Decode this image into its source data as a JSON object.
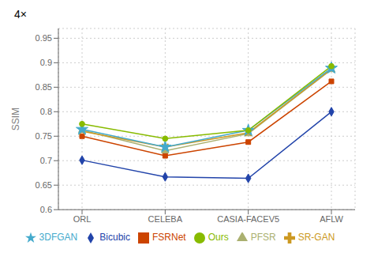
{
  "chart_data": {
    "type": "line",
    "title": "4×",
    "y_label": "SSIM",
    "categories": [
      "ORL",
      "CELEBA",
      "CASIA-FACEV5",
      "AFLW"
    ],
    "series": [
      {
        "name": "Bicubic",
        "color": "#2244aa",
        "marker": "diamond",
        "values": [
          0.701,
          0.667,
          0.664,
          0.8
        ]
      },
      {
        "name": "FSRNet",
        "color": "#cc4400",
        "marker": "square",
        "values": [
          0.75,
          0.71,
          0.738,
          0.862
        ]
      },
      {
        "name": "PFSR",
        "color": "#aab070",
        "marker": "triangle",
        "values": [
          0.762,
          0.72,
          0.755,
          0.886
        ]
      },
      {
        "name": "SR-GAN",
        "color": "#cc9922",
        "marker": "x",
        "values": [
          0.76,
          0.728,
          0.757,
          0.887
        ]
      },
      {
        "name": "3DFGAN",
        "color": "#44aacc",
        "marker": "star",
        "values": [
          0.764,
          0.728,
          0.762,
          0.889
        ]
      },
      {
        "name": "Ours",
        "color": "#88bb00",
        "marker": "circle",
        "values": [
          0.775,
          0.745,
          0.762,
          0.893
        ]
      }
    ],
    "ylim": [
      0.6,
      0.97
    ],
    "yticks": [
      0.6,
      0.65,
      0.7,
      0.75,
      0.8,
      0.85,
      0.9,
      0.95
    ],
    "grid": true,
    "legend": "bottom"
  }
}
